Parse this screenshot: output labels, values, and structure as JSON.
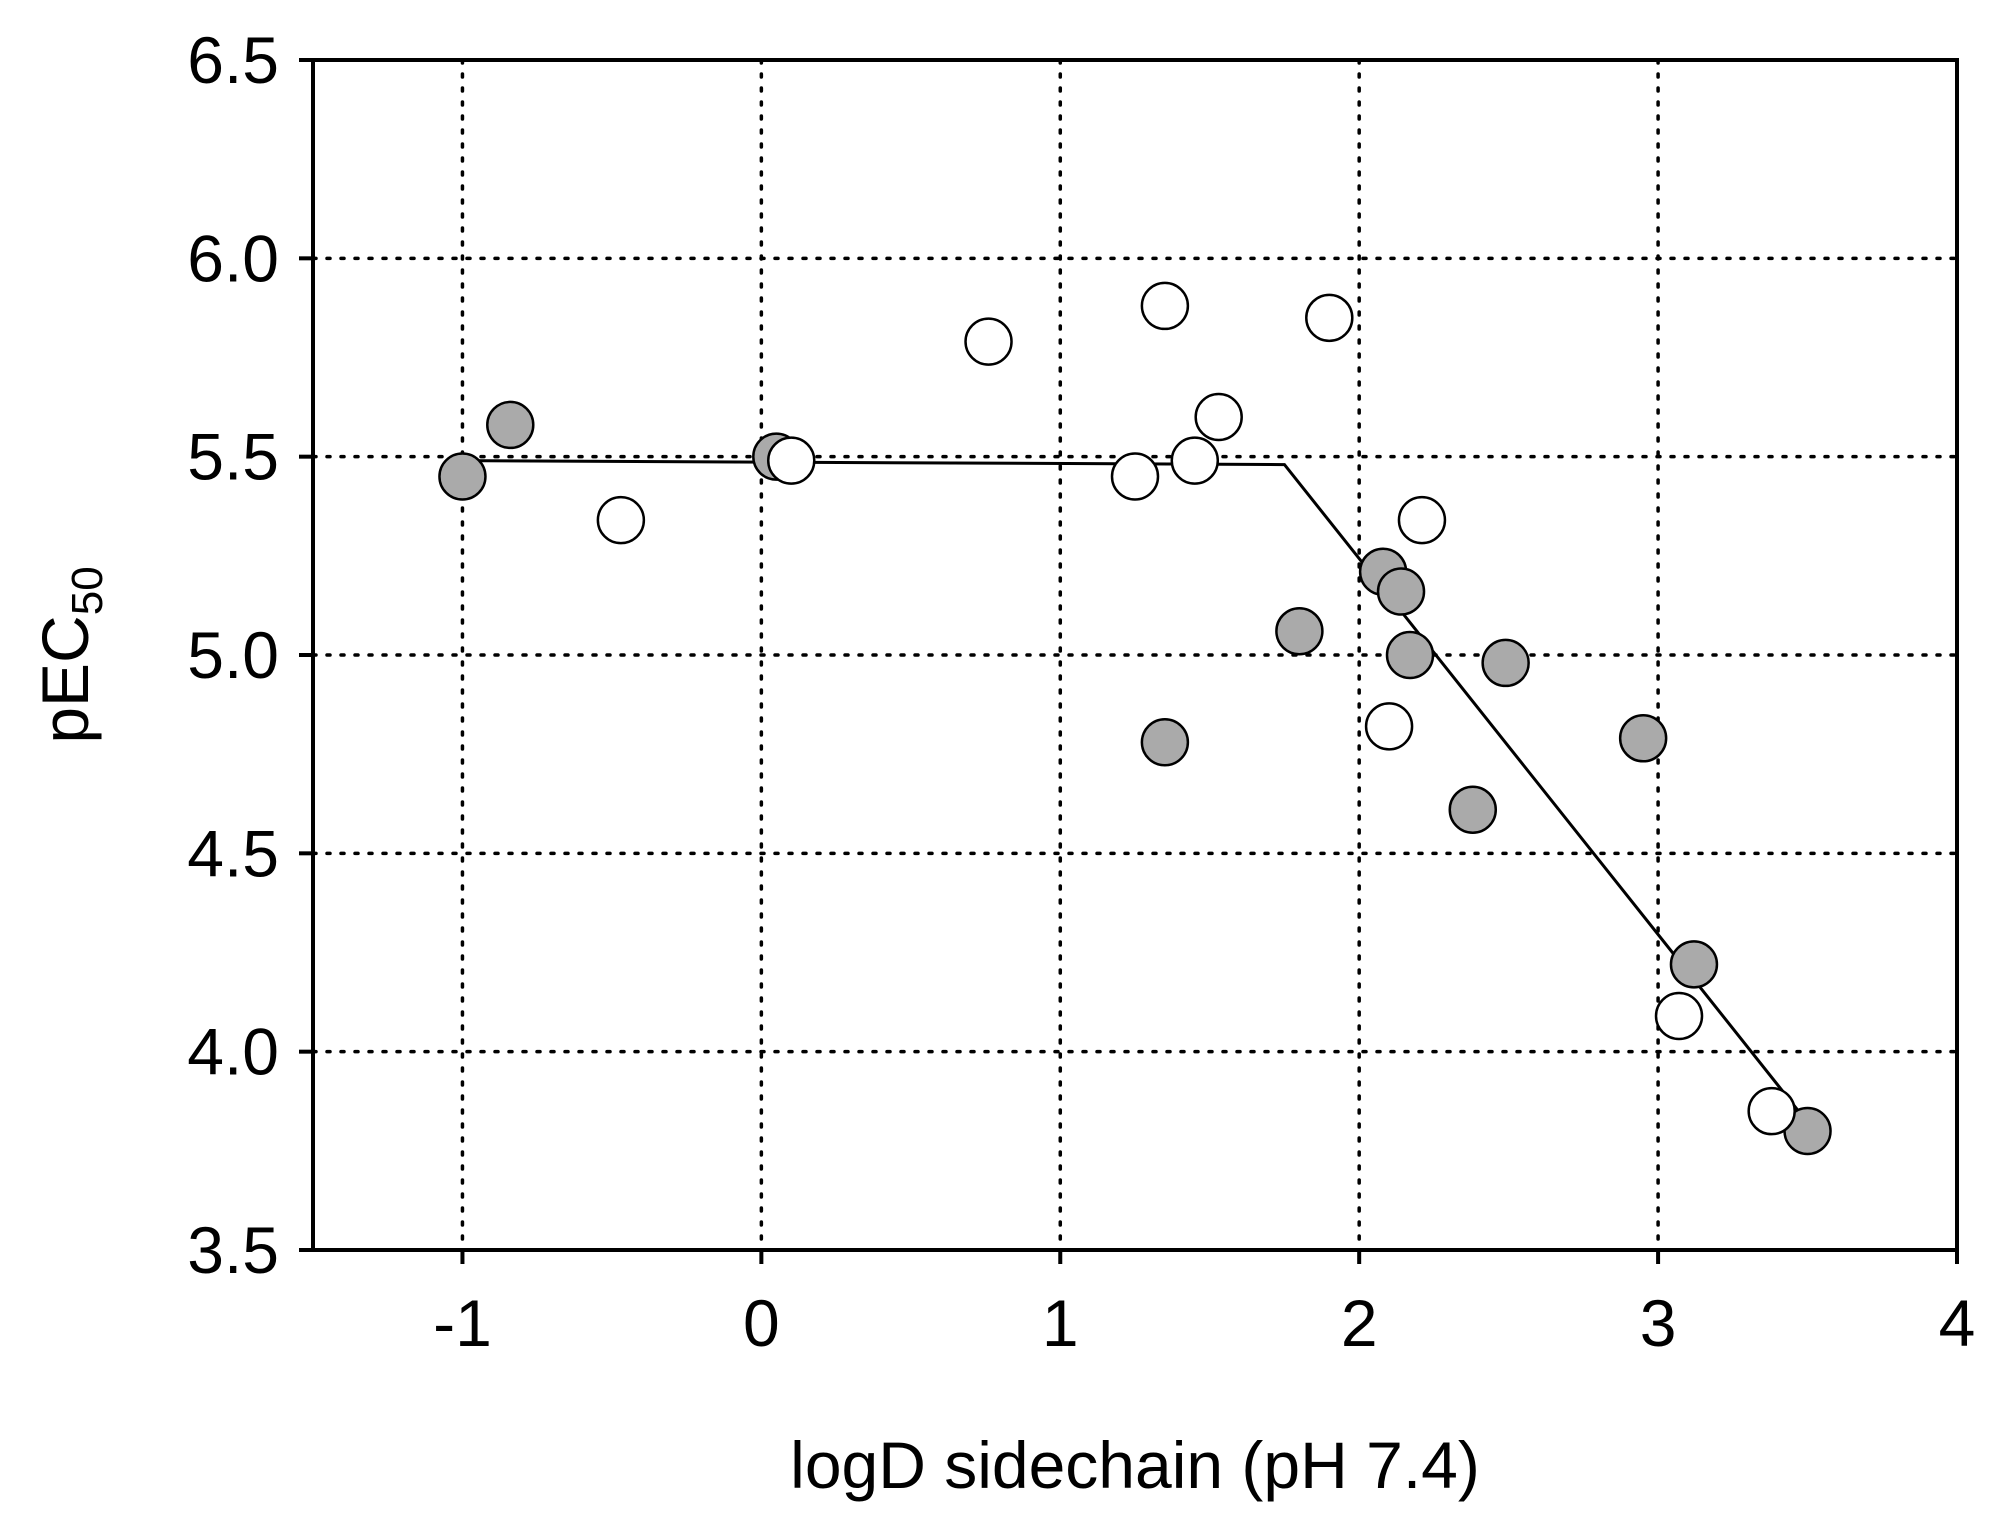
{
  "chart_data": {
    "type": "scatter",
    "title": "",
    "xlabel": "logD sidechain (pH 7.4)",
    "ylabel": {
      "main": "pEC",
      "subscript": "50"
    },
    "xlim": [
      -1.5,
      4
    ],
    "ylim": [
      3.5,
      6.5
    ],
    "x_ticks": [
      -1,
      0,
      1,
      2,
      3,
      4
    ],
    "x_tick_labels": [
      "-1",
      "0",
      "1",
      "2",
      "3",
      "4"
    ],
    "y_ticks": [
      3.5,
      4.0,
      4.5,
      5.0,
      5.5,
      6.0,
      6.5
    ],
    "y_tick_labels": [
      "3.5",
      "4.0",
      "4.5",
      "5.0",
      "5.5",
      "6.0",
      "6.5"
    ],
    "grid": true,
    "legend": "none",
    "colors": {
      "filled_marker": "#aaaaaa",
      "open_marker": "#ffffff",
      "marker_edge": "#000000",
      "line": "#000000"
    },
    "series": [
      {
        "marker": "filled-circle",
        "points": [
          {
            "x": -1.0,
            "y": 5.45
          },
          {
            "x": -0.84,
            "y": 5.58
          },
          {
            "x": 0.05,
            "y": 5.5
          },
          {
            "x": 1.35,
            "y": 4.78
          },
          {
            "x": 1.8,
            "y": 5.06
          },
          {
            "x": 2.08,
            "y": 5.21
          },
          {
            "x": 2.14,
            "y": 5.16
          },
          {
            "x": 2.17,
            "y": 5.0
          },
          {
            "x": 2.38,
            "y": 4.61
          },
          {
            "x": 2.49,
            "y": 4.98
          },
          {
            "x": 2.95,
            "y": 4.79
          },
          {
            "x": 3.12,
            "y": 4.22
          },
          {
            "x": 3.5,
            "y": 3.8
          }
        ]
      },
      {
        "marker": "open-circle",
        "points": [
          {
            "x": -0.47,
            "y": 5.34
          },
          {
            "x": 0.1,
            "y": 5.49
          },
          {
            "x": 0.76,
            "y": 5.79
          },
          {
            "x": 1.25,
            "y": 5.45
          },
          {
            "x": 1.35,
            "y": 5.88
          },
          {
            "x": 1.45,
            "y": 5.49
          },
          {
            "x": 1.53,
            "y": 5.6
          },
          {
            "x": 1.9,
            "y": 5.85
          },
          {
            "x": 2.1,
            "y": 4.82
          },
          {
            "x": 2.21,
            "y": 5.34
          },
          {
            "x": 3.07,
            "y": 4.09
          },
          {
            "x": 3.38,
            "y": 3.85
          }
        ]
      }
    ],
    "fit_line": {
      "x": [
        -1.0,
        1.75,
        3.47
      ],
      "y": [
        5.49,
        5.48,
        3.85
      ]
    }
  }
}
